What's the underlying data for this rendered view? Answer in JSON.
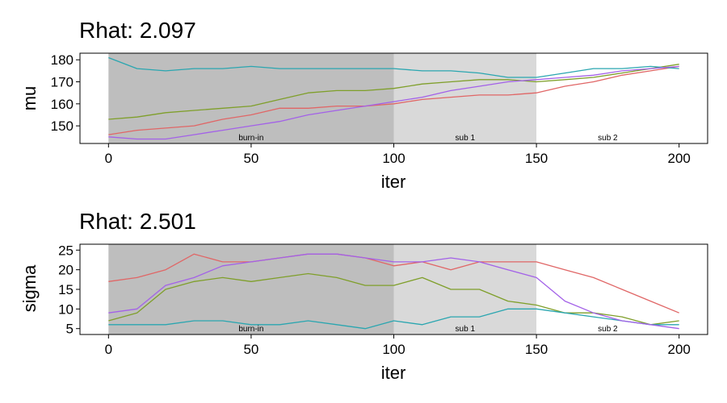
{
  "chart_data": [
    {
      "type": "line",
      "title": "Rhat: 2.097",
      "xlabel": "iter",
      "ylabel": "mu",
      "xlim": [
        -10,
        210
      ],
      "ylim": [
        142,
        183
      ],
      "xticks": [
        0,
        50,
        100,
        150,
        200
      ],
      "yticks": [
        150,
        160,
        170,
        180
      ],
      "regions": [
        {
          "label": "burn-in",
          "start": 0,
          "end": 100,
          "color": "#bebebe"
        },
        {
          "label": "sub 1",
          "start": 100,
          "end": 150,
          "color": "#d9d9d9"
        },
        {
          "label": "sub 2",
          "start": 150,
          "end": 200,
          "color": "#ffffff"
        }
      ],
      "x": [
        0,
        10,
        20,
        30,
        40,
        50,
        60,
        70,
        80,
        90,
        100,
        110,
        120,
        130,
        140,
        150,
        160,
        170,
        180,
        190,
        200
      ],
      "series": [
        {
          "color": "#e06666",
          "values": [
            146,
            148,
            149,
            150,
            153,
            155,
            158,
            158,
            159,
            159,
            160,
            162,
            163,
            164,
            164,
            165,
            168,
            170,
            173,
            175,
            177
          ]
        },
        {
          "color": "#7f9f2a",
          "values": [
            153,
            154,
            156,
            157,
            158,
            159,
            162,
            165,
            166,
            166,
            167,
            169,
            170,
            171,
            171,
            170,
            171,
            172,
            174,
            176,
            178
          ]
        },
        {
          "color": "#2aa6b0",
          "values": [
            181,
            176,
            175,
            176,
            176,
            177,
            176,
            176,
            176,
            176,
            176,
            175,
            175,
            174,
            172,
            172,
            174,
            176,
            176,
            177,
            176
          ]
        },
        {
          "color": "#a361e8",
          "values": [
            145,
            144,
            144,
            146,
            148,
            150,
            152,
            155,
            157,
            159,
            161,
            163,
            166,
            168,
            170,
            171,
            172,
            173,
            175,
            176,
            177
          ]
        }
      ]
    },
    {
      "type": "line",
      "title": "Rhat: 2.501",
      "xlabel": "iter",
      "ylabel": "sigma",
      "xlim": [
        -10,
        210
      ],
      "ylim": [
        3.5,
        26.5
      ],
      "xticks": [
        0,
        50,
        100,
        150,
        200
      ],
      "yticks": [
        5,
        10,
        15,
        20,
        25
      ],
      "regions": [
        {
          "label": "burn-in",
          "start": 0,
          "end": 100,
          "color": "#bebebe"
        },
        {
          "label": "sub 1",
          "start": 100,
          "end": 150,
          "color": "#d9d9d9"
        },
        {
          "label": "sub 2",
          "start": 150,
          "end": 200,
          "color": "#ffffff"
        }
      ],
      "x": [
        0,
        10,
        20,
        30,
        40,
        50,
        60,
        70,
        80,
        90,
        100,
        110,
        120,
        130,
        140,
        150,
        160,
        170,
        180,
        190,
        200
      ],
      "series": [
        {
          "color": "#e06666",
          "values": [
            17,
            18,
            20,
            24,
            22,
            22,
            23,
            24,
            24,
            23,
            21,
            22,
            20,
            22,
            22,
            22,
            20,
            18,
            15,
            12,
            9
          ]
        },
        {
          "color": "#7f9f2a",
          "values": [
            7,
            9,
            15,
            17,
            18,
            17,
            18,
            19,
            18,
            16,
            16,
            18,
            15,
            15,
            12,
            11,
            9,
            9,
            8,
            6,
            7
          ]
        },
        {
          "color": "#2aa6b0",
          "values": [
            6,
            6,
            6,
            7,
            7,
            6,
            6,
            7,
            6,
            5,
            7,
            6,
            8,
            8,
            10,
            10,
            9,
            8,
            7,
            6,
            6
          ]
        },
        {
          "color": "#a361e8",
          "values": [
            9,
            10,
            16,
            18,
            21,
            22,
            23,
            24,
            24,
            23,
            22,
            22,
            23,
            22,
            20,
            18,
            12,
            9,
            7,
            6,
            5
          ]
        }
      ]
    }
  ]
}
